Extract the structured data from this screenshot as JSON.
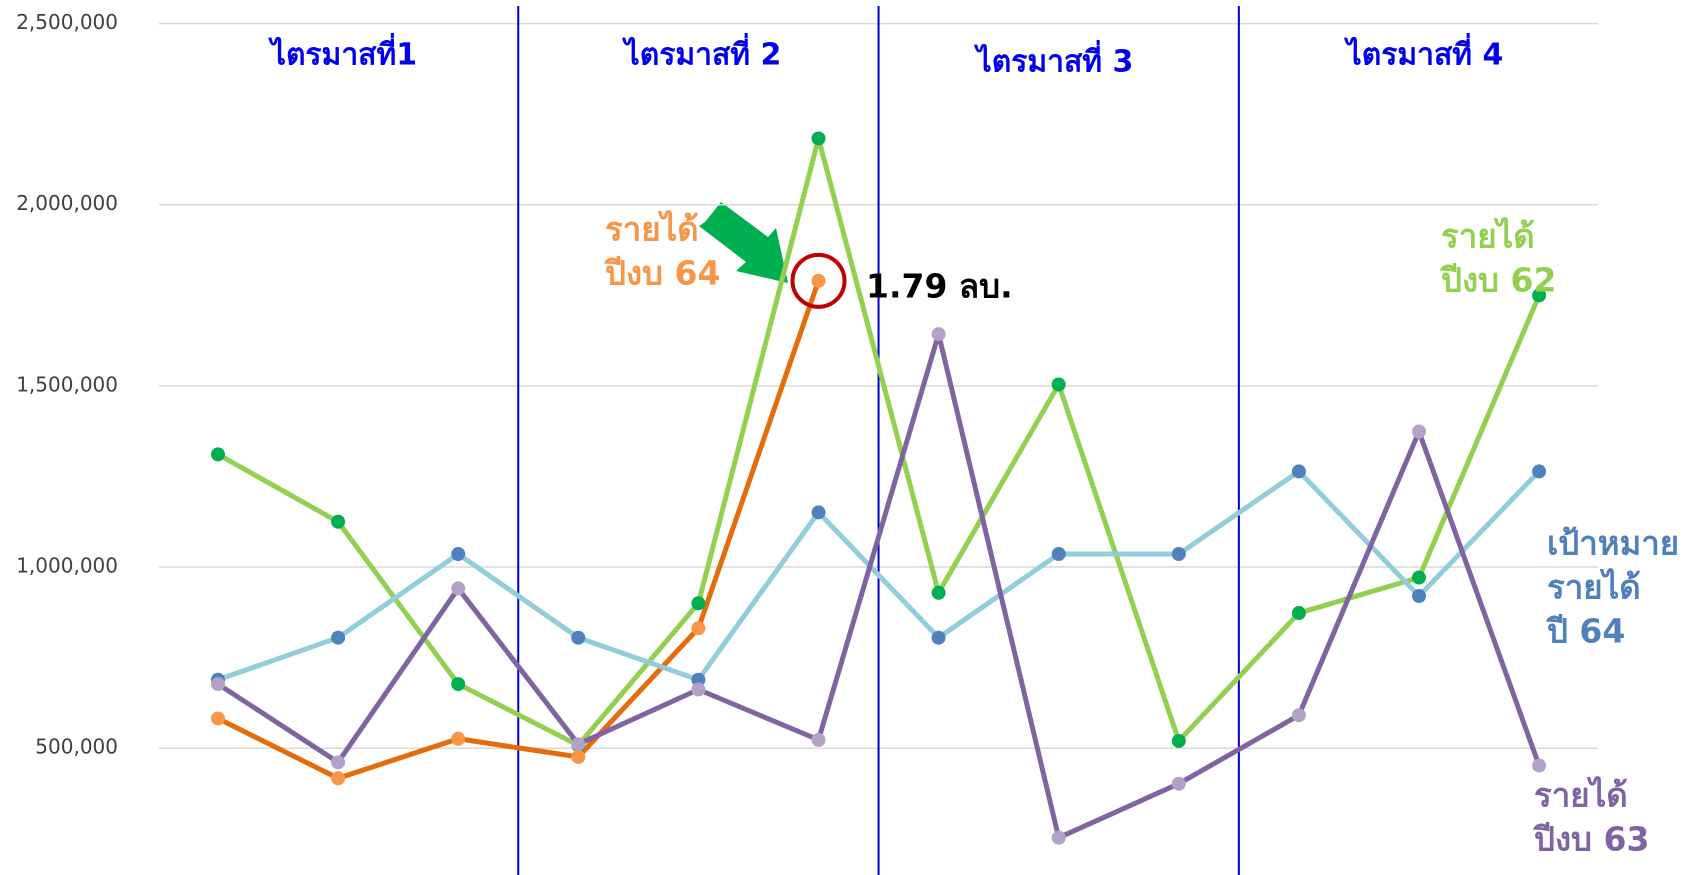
{
  "chart_data": {
    "type": "line",
    "categories": [
      null,
      null,
      null,
      null,
      null,
      null,
      null,
      null,
      null,
      null,
      null,
      null
    ],
    "ylim": [
      150000,
      2500000
    ],
    "yticks": [
      {
        "value": 500000,
        "label": "500,000"
      },
      {
        "value": 1000000,
        "label": "1,000,000"
      },
      {
        "value": 1500000,
        "label": "1,500,000"
      },
      {
        "value": 2000000,
        "label": "2,000,000"
      },
      {
        "value": 2500000,
        "label": "2,500,000"
      }
    ],
    "grid": true,
    "quarters": [
      "ไตรมาสที่1",
      "ไตรมาสที่ 2",
      "ไตรมาสที่ 3",
      "ไตรมาสที่ 4"
    ],
    "annotation": "1.79 ลบ.",
    "series": [
      {
        "label_lines": [
          "รายได้",
          "ปีงบ  62"
        ],
        "color": "#92d050",
        "marker_color": "#00b050",
        "values": [
          1311000,
          1125000,
          677000,
          508000,
          900000,
          2183000,
          929000,
          1504000,
          520000,
          873000,
          971000,
          1750000
        ]
      },
      {
        "label_lines": [
          "รายได้",
          "ปีงบ  64"
        ],
        "color": "#e46c0a",
        "marker_color": "#f79646",
        "values": [
          582000,
          417000,
          526000,
          476000,
          831000,
          1790000,
          null,
          null,
          null,
          null,
          null,
          null
        ]
      },
      {
        "label_lines": [
          "เป้าหมาย",
          "รายได้",
          "ปี  64"
        ],
        "color": "#92cddc",
        "marker_color": "#4f81bd",
        "values": [
          689000,
          805000,
          1036000,
          805000,
          689000,
          1151000,
          805000,
          1036000,
          1036000,
          1264000,
          920000,
          1264000
        ]
      },
      {
        "label_lines": [
          "รายได้",
          "ปีงบ  63"
        ],
        "color": "#8064a2",
        "marker_color": "#b3a2c7",
        "values": [
          677000,
          461000,
          941000,
          511000,
          662000,
          523000,
          1643000,
          253000,
          402000,
          591000,
          1374000,
          452000
        ]
      }
    ]
  }
}
